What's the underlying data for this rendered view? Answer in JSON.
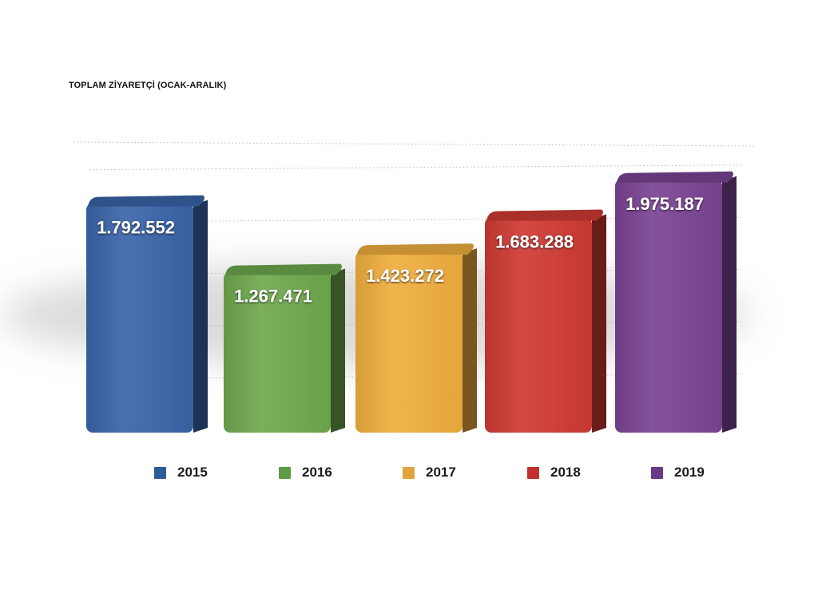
{
  "chart_data": {
    "type": "bar",
    "title": "TOPLAM ZİYARETÇİ (OCAK-ARALIK)",
    "categories": [
      "2015",
      "2016",
      "2017",
      "2018",
      "2019"
    ],
    "values": [
      1792552,
      1267471,
      1423272,
      1683288,
      1975187
    ],
    "value_labels": [
      "1.792.552",
      "1.267.471",
      "1.423.272",
      "1.683.288",
      "1.975.187"
    ],
    "colors": [
      "#3a64a8",
      "#6ea84e",
      "#f0ae3e",
      "#cf3a33",
      "#7a4393"
    ],
    "ylim": [
      0,
      2200000
    ],
    "grid": true,
    "legend_position": "bottom",
    "style": "3d"
  },
  "legend": {
    "items": [
      {
        "label": "2015",
        "color": "#2e5b9a"
      },
      {
        "label": "2016",
        "color": "#5f9a44"
      },
      {
        "label": "2017",
        "color": "#e3a33b"
      },
      {
        "label": "2018",
        "color": "#c0302c"
      },
      {
        "label": "2019",
        "color": "#6b3a86"
      }
    ]
  }
}
